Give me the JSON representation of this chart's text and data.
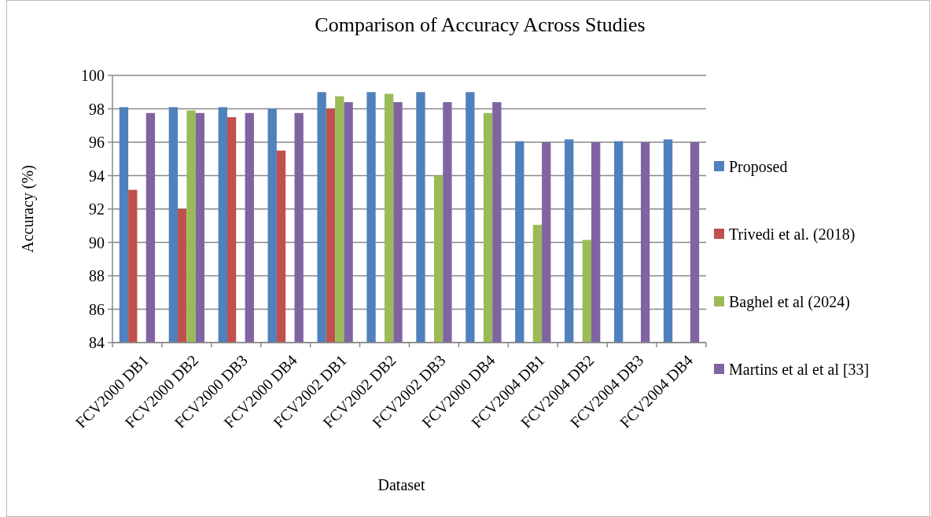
{
  "chart_data": {
    "type": "bar",
    "title": "Comparison of Accuracy Across Studies",
    "xlabel": "Dataset",
    "ylabel": "Accuracy (%)",
    "categories": [
      "FCV2000 DB1",
      "FCV2000 DB2",
      "FCV2000 DB3",
      "FCV2000 DB4",
      "FCV2002 DB1",
      "FCV2002 DB2",
      "FCV2002 DB3",
      "FCV2000 DB4",
      "FCV2004 DB1",
      "FCV2004 DB2",
      "FCV2004 DB3",
      "FCV2004 DB4"
    ],
    "series": [
      {
        "name": "Proposed",
        "color": "#4f81bd",
        "values": [
          98.1,
          98.1,
          98.1,
          98.0,
          99.0,
          99.0,
          99.0,
          99.0,
          96.06,
          96.17,
          96.06,
          96.17
        ]
      },
      {
        "name": "Trivedi et al. (2018)",
        "color": "#c0504d",
        "values": [
          93.15,
          92.0,
          97.5,
          95.5,
          98.0,
          null,
          null,
          null,
          null,
          null,
          null,
          null
        ]
      },
      {
        "name": "Baghel et al (2024)",
        "color": "#9bbb59",
        "values": [
          null,
          97.9,
          null,
          null,
          98.75,
          98.9,
          94.0,
          97.75,
          91.05,
          90.15,
          null,
          null
        ]
      },
      {
        "name": "Martins et al et al [33]",
        "color": "#8064a2",
        "values": [
          97.75,
          97.75,
          97.75,
          97.75,
          98.4,
          98.4,
          98.4,
          98.4,
          96.0,
          96.0,
          96.0,
          96.0
        ]
      }
    ],
    "ylim": [
      84,
      100
    ],
    "yticks": [
      84,
      86,
      88,
      90,
      92,
      94,
      96,
      98,
      100
    ],
    "grid": "y",
    "legend": "right"
  }
}
